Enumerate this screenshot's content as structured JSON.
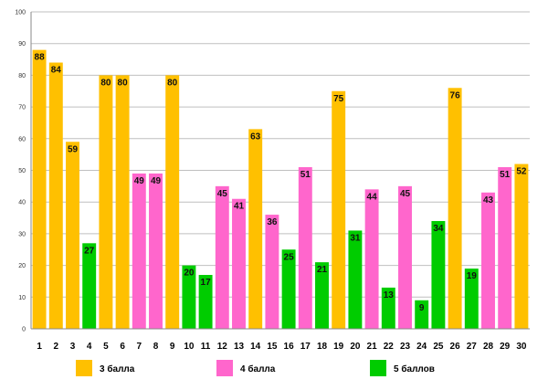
{
  "chart_data": {
    "type": "bar",
    "title": "",
    "xlabel": "",
    "ylabel": "",
    "ylim": [
      0,
      100
    ],
    "yticks": [
      0,
      10,
      20,
      30,
      40,
      50,
      60,
      70,
      80,
      90,
      100
    ],
    "grid": true,
    "categories": [
      "1",
      "2",
      "3",
      "4",
      "5",
      "6",
      "7",
      "8",
      "9",
      "10",
      "11",
      "12",
      "13",
      "14",
      "15",
      "16",
      "17",
      "18",
      "19",
      "20",
      "21",
      "22",
      "23",
      "24",
      "25",
      "26",
      "27",
      "28",
      "29",
      "30"
    ],
    "values": [
      88,
      84,
      59,
      27,
      80,
      80,
      49,
      49,
      80,
      20,
      17,
      45,
      41,
      63,
      36,
      25,
      51,
      21,
      75,
      31,
      44,
      13,
      45,
      9,
      34,
      76,
      19,
      43,
      51,
      52
    ],
    "groups": [
      "3",
      "3",
      "3",
      "5",
      "3",
      "3",
      "4",
      "4",
      "3",
      "5",
      "5",
      "4",
      "4",
      "3",
      "4",
      "5",
      "4",
      "5",
      "3",
      "5",
      "4",
      "5",
      "4",
      "5",
      "5",
      "3",
      "5",
      "4",
      "4",
      "3"
    ],
    "legend": [
      {
        "key": "3",
        "label": "3 балла",
        "color": "#FFC000"
      },
      {
        "key": "4",
        "label": "4 балла",
        "color": "#FF66CC"
      },
      {
        "key": "5",
        "label": "5 баллов",
        "color": "#00CC00"
      }
    ],
    "legend_position": "bottom"
  }
}
